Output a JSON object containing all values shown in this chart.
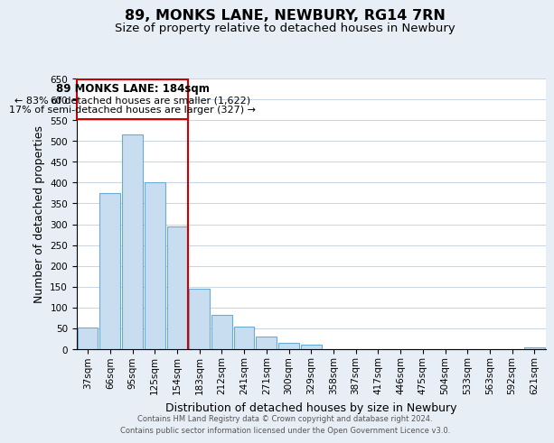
{
  "title": "89, MONKS LANE, NEWBURY, RG14 7RN",
  "subtitle": "Size of property relative to detached houses in Newbury",
  "xlabel": "Distribution of detached houses by size in Newbury",
  "ylabel": "Number of detached properties",
  "bar_color": "#c8ddef",
  "bar_edge_color": "#6aaad4",
  "highlight_line_color": "#cc0000",
  "background_color": "#e8eef5",
  "plot_bg_color": "#ffffff",
  "categories": [
    "37sqm",
    "66sqm",
    "95sqm",
    "125sqm",
    "154sqm",
    "183sqm",
    "212sqm",
    "241sqm",
    "271sqm",
    "300sqm",
    "329sqm",
    "358sqm",
    "387sqm",
    "417sqm",
    "446sqm",
    "475sqm",
    "504sqm",
    "533sqm",
    "563sqm",
    "592sqm",
    "621sqm"
  ],
  "values": [
    52,
    375,
    515,
    400,
    295,
    145,
    82,
    55,
    30,
    15,
    11,
    0,
    0,
    0,
    0,
    0,
    0,
    0,
    0,
    0,
    4
  ],
  "highlight_index": 5,
  "highlight_label": "89 MONKS LANE: 184sqm",
  "annotation_line1": "← 83% of detached houses are smaller (1,622)",
  "annotation_line2": "17% of semi-detached houses are larger (327) →",
  "ylim": [
    0,
    650
  ],
  "yticks": [
    0,
    50,
    100,
    150,
    200,
    250,
    300,
    350,
    400,
    450,
    500,
    550,
    600,
    650
  ],
  "footer_line1": "Contains HM Land Registry data © Crown copyright and database right 2024.",
  "footer_line2": "Contains public sector information licensed under the Open Government Licence v3.0.",
  "title_fontsize": 11.5,
  "subtitle_fontsize": 9.5,
  "tick_fontsize": 7.5,
  "ylabel_fontsize": 9,
  "xlabel_fontsize": 9,
  "footer_fontsize": 6,
  "annot_title_fontsize": 8.5,
  "annot_text_fontsize": 8
}
